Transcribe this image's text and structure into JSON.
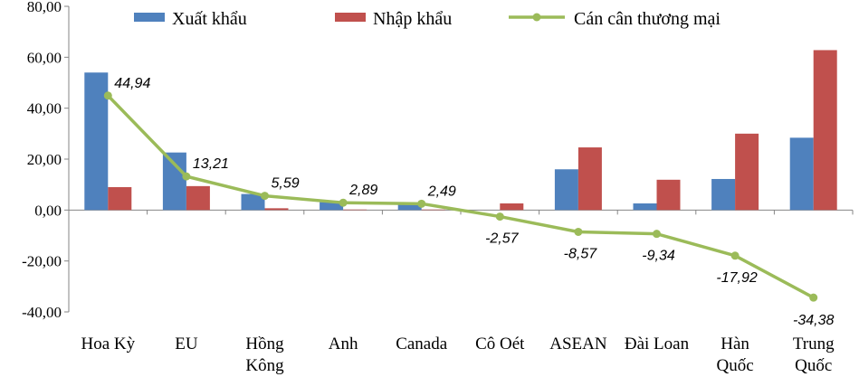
{
  "chart_data": {
    "type": "bar",
    "categories": [
      [
        "Hoa Kỳ"
      ],
      [
        "EU"
      ],
      [
        "Hồng",
        "Kông"
      ],
      [
        "Anh"
      ],
      [
        "Canada"
      ],
      [
        "Cô Oét"
      ],
      [
        "ASEAN"
      ],
      [
        "Đài Loan"
      ],
      [
        "Hàn",
        "Quốc"
      ],
      [
        "Trung",
        "Quốc"
      ]
    ],
    "series": [
      {
        "name": "Xuất khẩu",
        "type": "bar",
        "color": "#4F81BD",
        "values": [
          54.0,
          22.6,
          6.3,
          3.1,
          2.7,
          0.0,
          16.0,
          2.6,
          12.2,
          28.4
        ]
      },
      {
        "name": "Nhập khẩu",
        "type": "bar",
        "color": "#C0504D",
        "values": [
          9.0,
          9.4,
          0.7,
          0.2,
          0.2,
          2.6,
          24.6,
          11.9,
          30.0,
          62.8
        ]
      },
      {
        "name": "Cán cân thương mại",
        "type": "line",
        "color": "#9BBB59",
        "values": [
          44.94,
          13.21,
          5.59,
          2.89,
          2.49,
          -2.57,
          -8.57,
          -9.34,
          -17.92,
          -34.38
        ],
        "labels": [
          "44,94",
          "13,21",
          "5,59",
          "2,89",
          "2,49",
          "-2,57",
          "-8,57",
          "-9,34",
          "-17,92",
          "-34,38"
        ]
      }
    ],
    "ylim": [
      -40,
      80
    ],
    "yticks": [
      -40,
      -20,
      0,
      20,
      40,
      60,
      80
    ],
    "ytick_labels": [
      "-40,00",
      "-20,00",
      "0,00",
      "20,00",
      "40,00",
      "60,00",
      "80,00"
    ],
    "legend_position": "top",
    "grid": false
  }
}
